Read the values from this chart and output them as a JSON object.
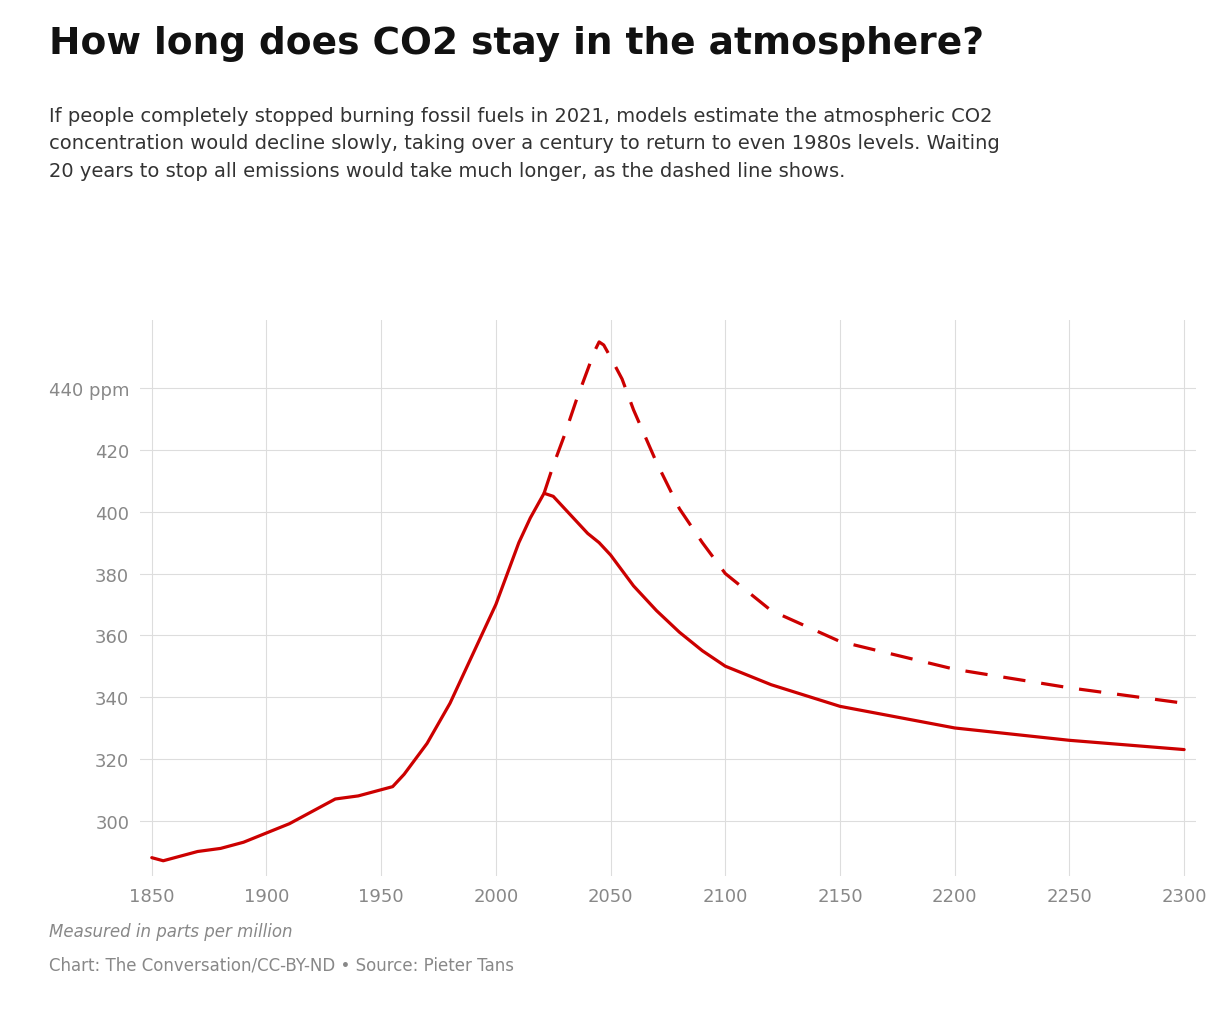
{
  "title": "How long does CO2 stay in the atmosphere?",
  "subtitle": "If people completely stopped burning fossil fuels in 2021, models estimate the atmospheric CO2\nconcentration would decline slowly, taking over a century to return to even 1980s levels. Waiting\n20 years to stop all emissions would take much longer, as the dashed line shows.",
  "footer_italic": "Measured in parts per million",
  "footer_normal": "Chart: The Conversation/CC-BY-ND • Source: Pieter Tans",
  "line_color": "#cc0000",
  "background_color": "#ffffff",
  "grid_color": "#dddddd",
  "text_color_dark": "#111111",
  "text_color_mid": "#333333",
  "text_color_light": "#888888",
  "yticks": [
    300,
    320,
    340,
    360,
    380,
    400,
    420,
    440
  ],
  "xticks": [
    1850,
    1900,
    1950,
    2000,
    2050,
    2100,
    2150,
    2200,
    2250,
    2300
  ],
  "ylim": [
    282,
    462
  ],
  "xlim": [
    1845,
    2305
  ],
  "solid_x": [
    1850,
    1855,
    1860,
    1870,
    1880,
    1890,
    1900,
    1910,
    1920,
    1930,
    1940,
    1950,
    1955,
    1960,
    1970,
    1980,
    1990,
    2000,
    2010,
    2015,
    2021,
    2025,
    2030,
    2035,
    2040,
    2045,
    2050,
    2060,
    2070,
    2080,
    2090,
    2100,
    2120,
    2150,
    2200,
    2250,
    2300
  ],
  "solid_y": [
    288,
    287,
    288,
    290,
    291,
    293,
    296,
    299,
    303,
    307,
    308,
    310,
    311,
    315,
    325,
    338,
    354,
    370,
    390,
    398,
    406,
    405,
    401,
    397,
    393,
    390,
    386,
    376,
    368,
    361,
    355,
    350,
    344,
    337,
    330,
    326,
    323
  ],
  "dashed_x": [
    2021,
    2025,
    2030,
    2035,
    2040,
    2043,
    2045,
    2047,
    2050,
    2055,
    2060,
    2070,
    2080,
    2090,
    2100,
    2120,
    2150,
    2200,
    2250,
    2300
  ],
  "dashed_y": [
    406,
    415,
    425,
    436,
    446,
    452,
    455,
    454,
    450,
    443,
    433,
    416,
    401,
    390,
    380,
    368,
    358,
    349,
    343,
    338
  ],
  "title_fontsize": 27,
  "subtitle_fontsize": 14,
  "footer_fontsize": 12,
  "tick_fontsize": 13
}
